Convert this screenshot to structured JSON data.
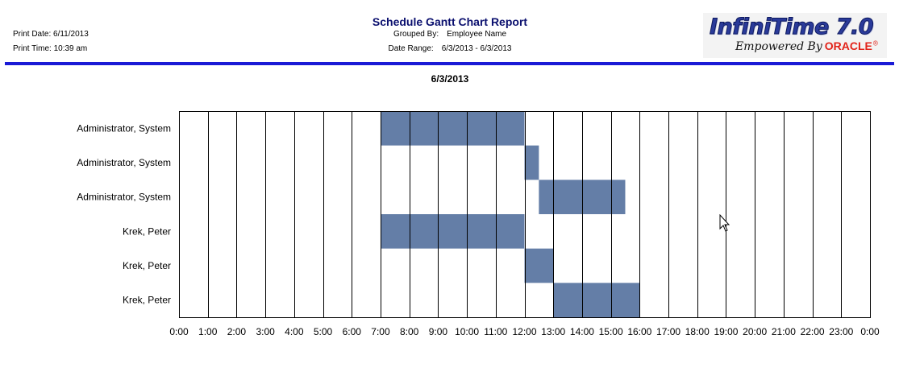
{
  "header": {
    "print_date": "Print Date: 6/11/2013",
    "print_time": "Print Time: 10:39 am",
    "title": "Schedule Gantt Chart Report",
    "grouped_by_label": "Grouped By:",
    "grouped_by_value": "Employee Name",
    "date_range_label": "Date Range:",
    "date_range_value": "6/3/2013 - 6/3/2013",
    "logo_main": "InfiniTime 7.0",
    "logo_tag": "Empowered By",
    "logo_brand": "ORACLE",
    "logo_reg": "®",
    "rule_color": "#1a1ad6"
  },
  "chart_data": {
    "type": "gantt",
    "title": "6/3/2013",
    "x_ticks": [
      "0:00",
      "1:00",
      "2:00",
      "3:00",
      "4:00",
      "5:00",
      "6:00",
      "7:00",
      "8:00",
      "9:00",
      "10:00",
      "11:00",
      "12:00",
      "13:00",
      "14:00",
      "15:00",
      "16:00",
      "17:00",
      "18:00",
      "19:00",
      "20:00",
      "21:00",
      "22:00",
      "23:00",
      "0:00"
    ],
    "xlim": [
      0,
      24
    ],
    "grid": true,
    "bar_color": "#647ea7",
    "rows": [
      {
        "label": "Administrator, System",
        "start": 7,
        "end": 12
      },
      {
        "label": "Administrator, System",
        "start": 12,
        "end": 12.5
      },
      {
        "label": "Administrator, System",
        "start": 12.5,
        "end": 15.5
      },
      {
        "label": "Krek, Peter",
        "start": 7,
        "end": 12
      },
      {
        "label": "Krek, Peter",
        "start": 12,
        "end": 13
      },
      {
        "label": "Krek, Peter",
        "start": 13,
        "end": 16
      }
    ]
  }
}
